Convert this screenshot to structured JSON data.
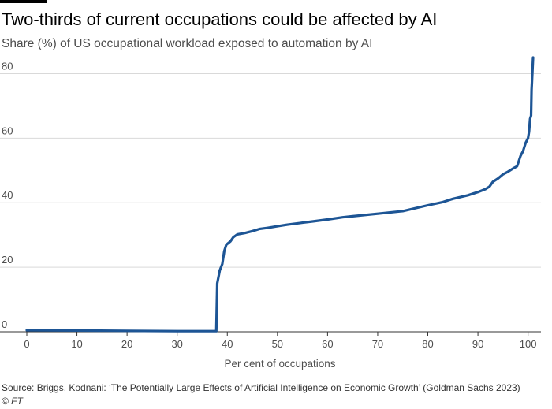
{
  "title": "Two-thirds of current occupations could be affected by AI",
  "subtitle": "Share (%) of US occupational workload exposed to automation by AI",
  "source": "Source: Briggs, Kodnani: ‘The Potentially Large Effects of Artificial Intelligence on Economic Growth’ (Goldman Sachs 2023)",
  "copyright": "© FT",
  "colors": {
    "line": "#1d5595",
    "grid": "#d9d9d9",
    "axis": "#333333",
    "text": "#4d4d4d"
  },
  "chart_data": {
    "type": "line",
    "title": "Two-thirds of current occupations could be affected by AI",
    "subtitle": "Share (%) of US occupational workload exposed to automation by AI",
    "xlabel": "Per cent of occupations",
    "ylabel": "",
    "xlim": [
      0,
      101
    ],
    "ylim": [
      0,
      85
    ],
    "xticks": [
      0,
      10,
      20,
      30,
      40,
      50,
      60,
      70,
      80,
      90,
      100
    ],
    "yticks": [
      0,
      20,
      40,
      60,
      80
    ],
    "grid": "horizontal",
    "series": [
      {
        "points": [
          [
            0,
            0.5
          ],
          [
            10,
            0.4
          ],
          [
            20,
            0.3
          ],
          [
            30,
            0.2
          ],
          [
            37.8,
            0.2
          ],
          [
            38.0,
            15
          ],
          [
            38.5,
            19
          ],
          [
            39.0,
            21
          ],
          [
            39.4,
            25
          ],
          [
            39.8,
            27
          ],
          [
            40.6,
            28
          ],
          [
            41.2,
            29.3
          ],
          [
            42,
            30.2
          ],
          [
            43.5,
            30.6
          ],
          [
            45,
            31.2
          ],
          [
            46.5,
            31.9
          ],
          [
            48,
            32.2
          ],
          [
            50,
            32.7
          ],
          [
            52,
            33.2
          ],
          [
            55,
            33.8
          ],
          [
            57,
            34.2
          ],
          [
            60,
            34.8
          ],
          [
            63,
            35.5
          ],
          [
            65,
            35.8
          ],
          [
            70,
            36.6
          ],
          [
            75,
            37.4
          ],
          [
            80,
            39.2
          ],
          [
            83,
            40.2
          ],
          [
            85,
            41.2
          ],
          [
            88,
            42.3
          ],
          [
            90,
            43.3
          ],
          [
            91.5,
            44.2
          ],
          [
            92.3,
            45
          ],
          [
            93,
            46.5
          ],
          [
            94,
            47.5
          ],
          [
            95,
            48.8
          ],
          [
            96,
            49.6
          ],
          [
            97,
            50.6
          ],
          [
            97.8,
            51.3
          ],
          [
            98.5,
            54.5
          ],
          [
            99,
            56
          ],
          [
            99.5,
            58.5
          ],
          [
            100,
            60
          ],
          [
            100.2,
            62
          ],
          [
            100.4,
            66
          ],
          [
            100.6,
            67
          ],
          [
            100.7,
            75
          ],
          [
            100.8,
            78
          ],
          [
            101,
            85
          ]
        ]
      }
    ]
  }
}
